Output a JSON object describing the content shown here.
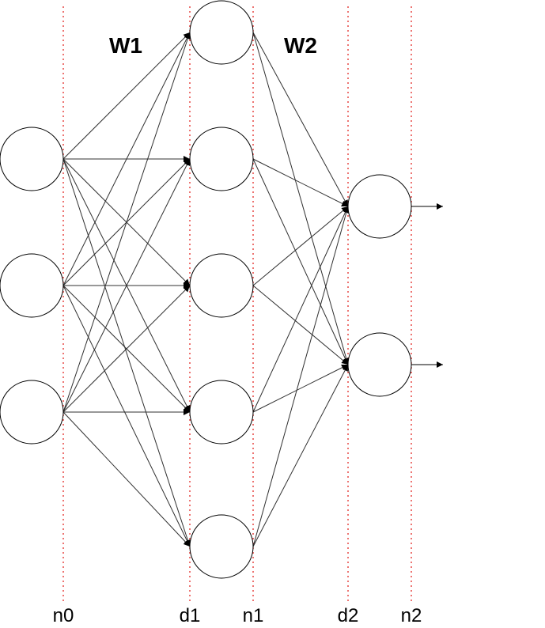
{
  "diagram": {
    "weight_labels": {
      "w1": "W1",
      "w2": "W2"
    },
    "guide_labels": {
      "n0": "n0",
      "d1": "d1",
      "n1": "n1",
      "d2": "d2",
      "n2": "n2"
    },
    "layers": {
      "input": 3,
      "hidden": 5,
      "output": 2
    }
  }
}
